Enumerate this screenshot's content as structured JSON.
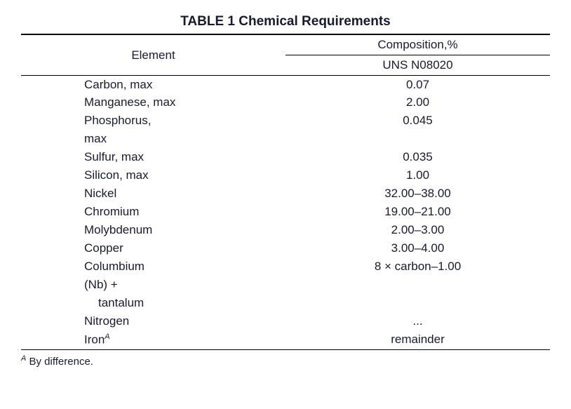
{
  "table": {
    "title": "TABLE 1 Chemical Requirements",
    "header": {
      "element_label": "Element",
      "comp_label": "Composition,%",
      "uns_label": "UNS N08020"
    },
    "rows": [
      {
        "element": "Carbon, max",
        "value": "0.07",
        "indent": 0
      },
      {
        "element": "Manganese, max",
        "value": "2.00",
        "indent": 0
      },
      {
        "element": "Phosphorus,",
        "value": "0.045",
        "indent": 0
      },
      {
        "element": "max",
        "value": "",
        "indent": 0
      },
      {
        "element": "Sulfur, max",
        "value": "0.035",
        "indent": 0
      },
      {
        "element": "Silicon, max",
        "value": "1.00",
        "indent": 0
      },
      {
        "element": "Nickel",
        "value": "32.00–38.00",
        "indent": 0
      },
      {
        "element": "Chromium",
        "value": "19.00–21.00",
        "indent": 0
      },
      {
        "element": "Molybdenum",
        "value": "2.00–3.00",
        "indent": 0
      },
      {
        "element": "Copper",
        "value": "3.00–4.00",
        "indent": 0
      },
      {
        "element": "Columbium",
        "value": "8 × carbon–1.00",
        "indent": 0
      },
      {
        "element": "(Nb) +",
        "value": "",
        "indent": 0
      },
      {
        "element": "tantalum",
        "value": "",
        "indent": 1
      },
      {
        "element": "Nitrogen",
        "value": "...",
        "indent": 0
      },
      {
        "element": "Iron",
        "value": "remainder",
        "indent": 0,
        "sup": "A"
      }
    ],
    "footnote": {
      "sup": "A",
      "text": " By difference."
    }
  },
  "style": {
    "text_color": "#1a1a2e",
    "rule_color": "#000000",
    "title_fontsize": 19,
    "body_fontsize": 17,
    "footnote_fontsize": 15
  }
}
